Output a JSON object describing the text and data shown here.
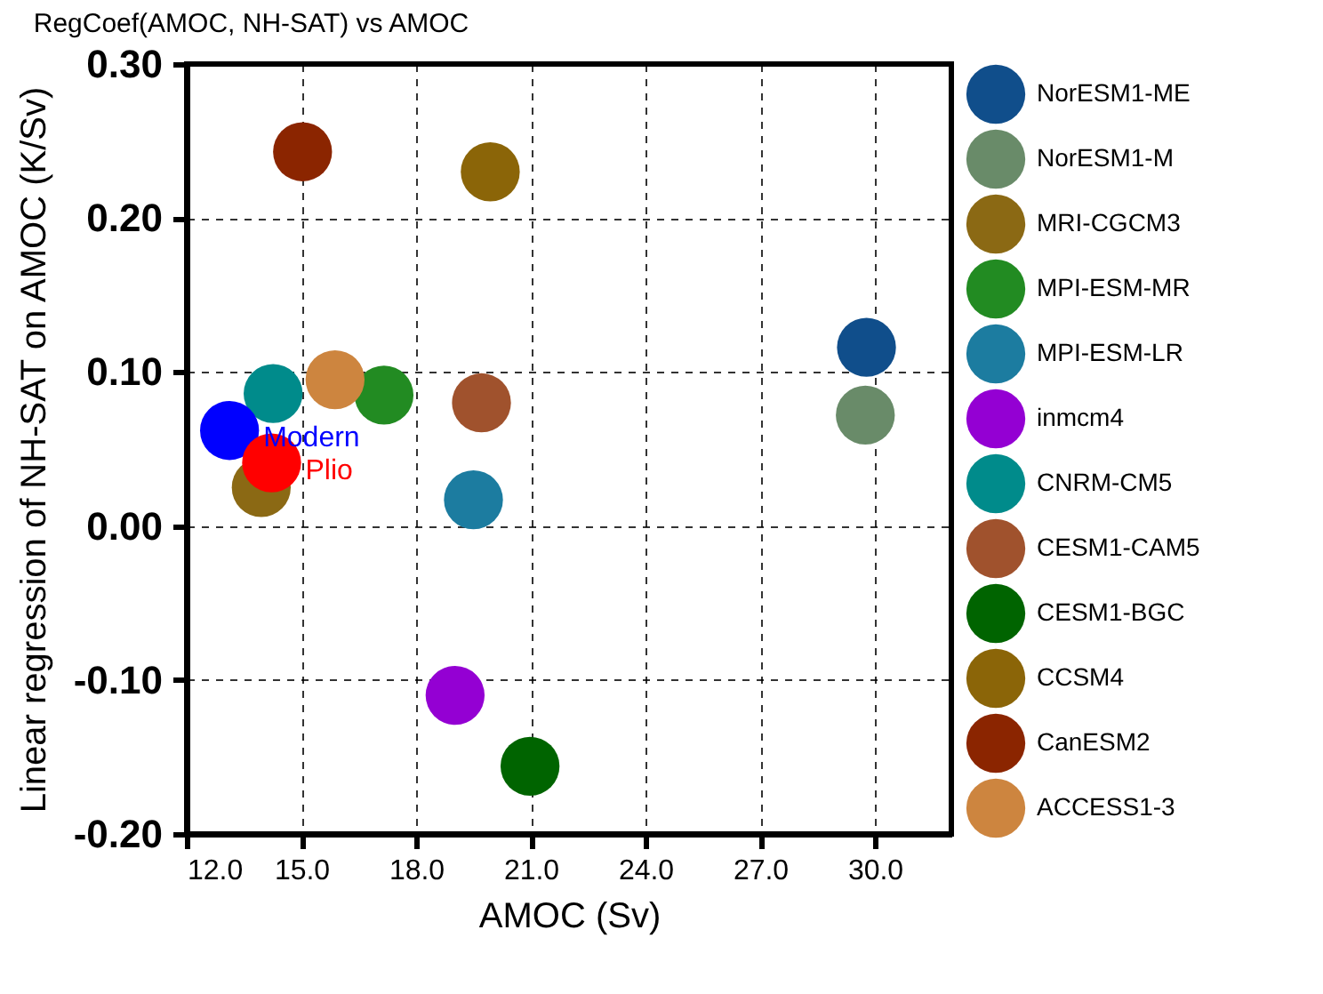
{
  "chart_data": {
    "type": "scatter",
    "title": "RegCoef(AMOC, NH-SAT) vs AMOC",
    "xlabel": "AMOC (Sv)",
    "ylabel": "Linear regression of NH-SAT on AMOC (K/Sv)",
    "xlim": [
      12,
      32
    ],
    "ylim": [
      -0.2,
      0.3
    ],
    "xticks": [
      {
        "value": 12,
        "label": "12.0"
      },
      {
        "value": 15,
        "label": "15.0"
      },
      {
        "value": 18,
        "label": "18.0"
      },
      {
        "value": 21,
        "label": "21.0"
      },
      {
        "value": 24,
        "label": "24.0"
      },
      {
        "value": 27,
        "label": "27.0"
      },
      {
        "value": 30,
        "label": "30.0"
      }
    ],
    "yticks": [
      {
        "value": -0.2,
        "label": "-0.20"
      },
      {
        "value": -0.1,
        "label": "-0.10"
      },
      {
        "value": 0,
        "label": "0.00"
      },
      {
        "value": 0.1,
        "label": "0.10"
      },
      {
        "value": 0.2,
        "label": "0.20"
      },
      {
        "value": 0.3,
        "label": "0.30"
      }
    ],
    "grid": true,
    "legend": "right",
    "marker": "circle",
    "annotations": [
      {
        "text": "Modern",
        "x": 13.12,
        "y": 0.062
      },
      {
        "text": "Plio",
        "x": 14.22,
        "y": 0.041
      }
    ],
    "series": [
      {
        "name": "NorESM1-ME",
        "color": "#104e8b",
        "x": [
          29.78
        ],
        "values": [
          0.116
        ]
      },
      {
        "name": "NorESM1-M",
        "color": "#698b69",
        "x": [
          29.75
        ],
        "values": [
          0.072
        ]
      },
      {
        "name": "MRI-CGCM3",
        "color": "#8b6914",
        "x": [
          13.95
        ],
        "values": [
          0.025
        ]
      },
      {
        "name": "MPI-ESM-MR",
        "color": "#228b22",
        "x": [
          17.16
        ],
        "values": [
          0.085
        ]
      },
      {
        "name": "MPI-ESM-LR",
        "color": "#1c7ca0",
        "x": [
          19.5
        ],
        "values": [
          0.017
        ]
      },
      {
        "name": "inmcm4",
        "color": "#9400d3",
        "x": [
          19.02
        ],
        "values": [
          -0.11
        ]
      },
      {
        "name": "CNRM-CM5",
        "color": "#008b8b",
        "x": [
          14.26
        ],
        "values": [
          0.086
        ]
      },
      {
        "name": "CESM1-CAM5",
        "color": "#a0522d",
        "x": [
          19.71
        ],
        "values": [
          0.08
        ]
      },
      {
        "name": "CESM1-BGC",
        "color": "#006400",
        "x": [
          20.98
        ],
        "values": [
          -0.156
        ]
      },
      {
        "name": "CCSM4",
        "color": "#8b6508",
        "x": [
          19.94
        ],
        "values": [
          0.23
        ]
      },
      {
        "name": "CanESM2",
        "color": "#8b2500",
        "x": [
          15.03
        ],
        "values": [
          0.243
        ]
      },
      {
        "name": "ACCESS1-3",
        "color": "#cd853f",
        "x": [
          15.88
        ],
        "values": [
          0.095
        ]
      },
      {
        "color": "#0000ff",
        "x": [
          13.12
        ],
        "values": [
          0.062
        ]
      },
      {
        "color": "#ff0000",
        "x": [
          14.22
        ],
        "values": [
          0.041
        ]
      }
    ]
  }
}
